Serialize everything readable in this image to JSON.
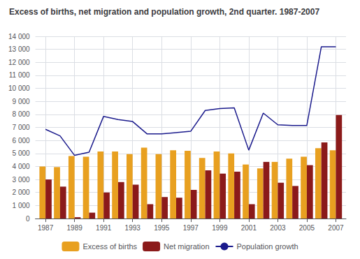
{
  "chart_data": {
    "type": "bar",
    "title": "Excess of births, net migration and population growth, 2nd quarter. 1987-2007",
    "x": [
      1987,
      1988,
      1989,
      1990,
      1991,
      1992,
      1993,
      1994,
      1995,
      1996,
      1997,
      1998,
      1999,
      2000,
      2001,
      2002,
      2003,
      2004,
      2005,
      2006,
      2007
    ],
    "series": [
      {
        "name": "Excess of births",
        "type": "bar",
        "color": "#E8A020",
        "values": [
          4000,
          3950,
          4800,
          4750,
          5150,
          5150,
          4950,
          5450,
          4950,
          5250,
          5200,
          4650,
          5150,
          5000,
          4150,
          3850,
          4350,
          4600,
          4750,
          5400,
          5250
        ]
      },
      {
        "name": "Net migration",
        "type": "bar",
        "color": "#8B1A1A",
        "values": [
          3000,
          2450,
          100,
          450,
          2000,
          2800,
          2600,
          1100,
          1650,
          1600,
          2200,
          3700,
          3450,
          3600,
          1100,
          4350,
          2750,
          2500,
          4100,
          5850,
          7950
        ]
      },
      {
        "name": "Population growth",
        "type": "line",
        "color": "#1A1A8C",
        "values": [
          6850,
          6350,
          4850,
          5100,
          7850,
          7600,
          7450,
          6500,
          6500,
          6600,
          6700,
          8300,
          8450,
          8500,
          5250,
          8100,
          7200,
          7150,
          7150,
          13200,
          13200
        ]
      }
    ],
    "xlim": [
      1986.3,
      2007.7
    ],
    "xticks": [
      1987,
      1989,
      1991,
      1993,
      1995,
      1997,
      1999,
      2001,
      2003,
      2005,
      2007
    ],
    "ylim": [
      0,
      14000
    ],
    "yticks": [
      0,
      {
        "value": 1000,
        "label": "1 000"
      },
      {
        "value": 2000,
        "label": "2 000"
      },
      {
        "value": 3000,
        "label": "3 000"
      },
      {
        "value": 4000,
        "label": "4 000"
      },
      {
        "value": 5000,
        "label": "5 000"
      },
      {
        "value": 6000,
        "label": "6 000"
      },
      {
        "value": 7000,
        "label": "7 000"
      },
      {
        "value": 8000,
        "label": "8 000"
      },
      {
        "value": 9000,
        "label": "9 000"
      },
      {
        "value": 10000,
        "label": "10 000"
      },
      {
        "value": 11000,
        "label": "11 000"
      },
      {
        "value": 12000,
        "label": "12 000"
      },
      {
        "value": 13000,
        "label": "13 000"
      },
      {
        "value": 14000,
        "label": "14 000"
      }
    ],
    "grid": true,
    "legend": "bottom"
  }
}
